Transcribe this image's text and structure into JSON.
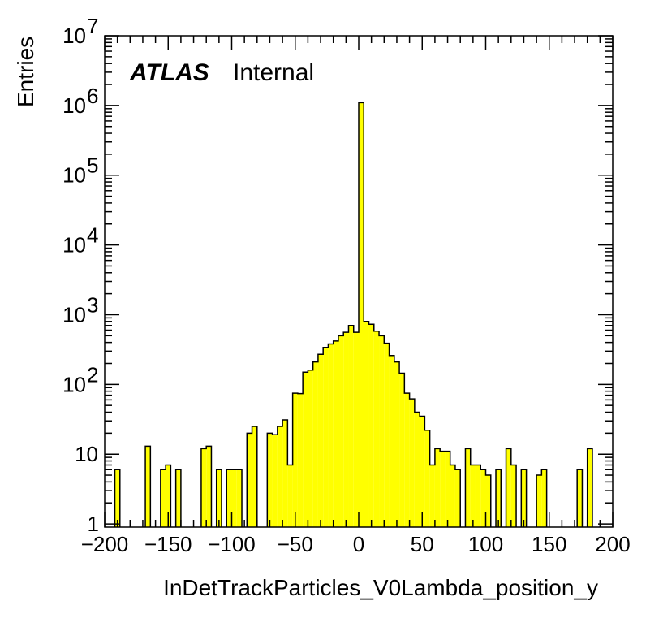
{
  "chart_data": {
    "type": "bar",
    "title": "",
    "xlabel": "InDetTrackParticles_V0Lambda_position_y",
    "ylabel": "Entries",
    "xlim": [
      -200,
      200
    ],
    "ylim": [
      0.9,
      10000000
    ],
    "log_y": true,
    "fill_color": "#ffff00",
    "line_color": "#000000",
    "bin_width": 4,
    "x_tick_labels": [
      "−200",
      "−150",
      "−100",
      "−50",
      "0",
      "50",
      "100",
      "150",
      "200"
    ],
    "x_ticks": [
      -200,
      -150,
      -100,
      -50,
      0,
      50,
      100,
      150,
      200
    ],
    "y_ticks": [
      {
        "value": 1,
        "base": "1",
        "exp": ""
      },
      {
        "value": 10,
        "base": "10",
        "exp": ""
      },
      {
        "value": 100,
        "base": "10",
        "exp": "2"
      },
      {
        "value": 1000,
        "base": "10",
        "exp": "3"
      },
      {
        "value": 10000,
        "base": "10",
        "exp": "4"
      },
      {
        "value": 100000,
        "base": "10",
        "exp": "5"
      },
      {
        "value": 1000000,
        "base": "10",
        "exp": "6"
      },
      {
        "value": 10000000,
        "base": "10",
        "exp": "7"
      }
    ],
    "annotations": {
      "atlas": "ATLAS",
      "status": "Internal"
    },
    "bins": [
      {
        "x": -192,
        "y": 6
      },
      {
        "x": -168,
        "y": 13
      },
      {
        "x": -156,
        "y": 6
      },
      {
        "x": -152,
        "y": 7
      },
      {
        "x": -144,
        "y": 6
      },
      {
        "x": -124,
        "y": 12
      },
      {
        "x": -120,
        "y": 13
      },
      {
        "x": -112,
        "y": 6
      },
      {
        "x": -104,
        "y": 6
      },
      {
        "x": -100,
        "y": 6
      },
      {
        "x": -96,
        "y": 6
      },
      {
        "x": -88,
        "y": 20
      },
      {
        "x": -84,
        "y": 25
      },
      {
        "x": -72,
        "y": 20
      },
      {
        "x": -68,
        "y": 19
      },
      {
        "x": -64,
        "y": 25
      },
      {
        "x": -60,
        "y": 31
      },
      {
        "x": -56,
        "y": 7
      },
      {
        "x": -52,
        "y": 75
      },
      {
        "x": -48,
        "y": 74
      },
      {
        "x": -44,
        "y": 150
      },
      {
        "x": -40,
        "y": 160
      },
      {
        "x": -36,
        "y": 210
      },
      {
        "x": -32,
        "y": 270
      },
      {
        "x": -28,
        "y": 340
      },
      {
        "x": -24,
        "y": 380
      },
      {
        "x": -20,
        "y": 420
      },
      {
        "x": -16,
        "y": 500
      },
      {
        "x": -12,
        "y": 560
      },
      {
        "x": -8,
        "y": 700
      },
      {
        "x": -4,
        "y": 560
      },
      {
        "x": 0,
        "y": 1100000
      },
      {
        "x": 4,
        "y": 800
      },
      {
        "x": 8,
        "y": 730
      },
      {
        "x": 12,
        "y": 580
      },
      {
        "x": 16,
        "y": 500
      },
      {
        "x": 20,
        "y": 390
      },
      {
        "x": 24,
        "y": 260
      },
      {
        "x": 28,
        "y": 210
      },
      {
        "x": 32,
        "y": 145
      },
      {
        "x": 36,
        "y": 75
      },
      {
        "x": 40,
        "y": 62
      },
      {
        "x": 44,
        "y": 40
      },
      {
        "x": 48,
        "y": 35
      },
      {
        "x": 52,
        "y": 22
      },
      {
        "x": 56,
        "y": 7
      },
      {
        "x": 60,
        "y": 12
      },
      {
        "x": 64,
        "y": 11
      },
      {
        "x": 68,
        "y": 11
      },
      {
        "x": 72,
        "y": 7
      },
      {
        "x": 76,
        "y": 6
      },
      {
        "x": 84,
        "y": 12
      },
      {
        "x": 88,
        "y": 7
      },
      {
        "x": 92,
        "y": 7
      },
      {
        "x": 96,
        "y": 6
      },
      {
        "x": 100,
        "y": 5
      },
      {
        "x": 108,
        "y": 6
      },
      {
        "x": 116,
        "y": 12
      },
      {
        "x": 120,
        "y": 7
      },
      {
        "x": 128,
        "y": 6
      },
      {
        "x": 140,
        "y": 5
      },
      {
        "x": 144,
        "y": 6
      },
      {
        "x": 172,
        "y": 6
      },
      {
        "x": 180,
        "y": 12
      }
    ]
  }
}
